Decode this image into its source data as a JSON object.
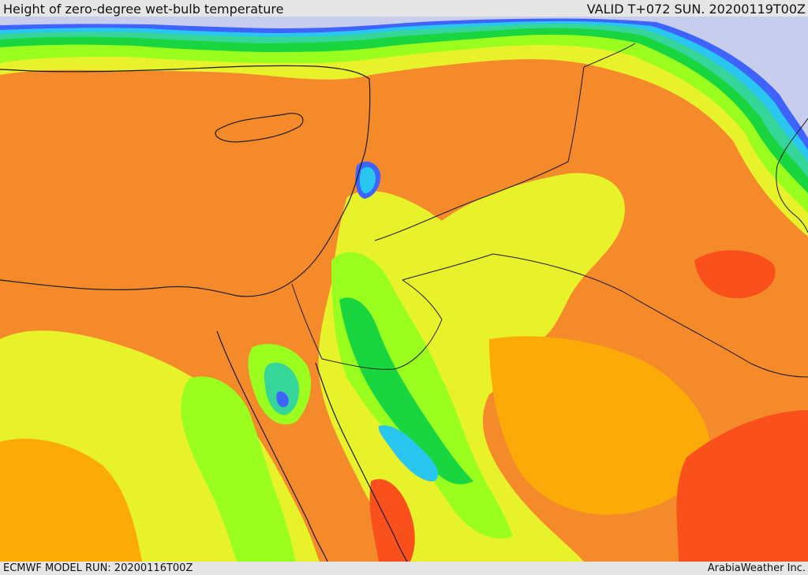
{
  "header": {
    "title": "Height of zero-degree wet-bulb temperature",
    "valid": "VALID T+072 SUN. 20200119T00Z"
  },
  "footer": {
    "model_run": "ECMWF MODEL RUN: 20200116T00Z",
    "credit": "ArabiaWeather Inc."
  },
  "colors": {
    "lavender": "#c8cdee",
    "blue": "#3f63ff",
    "cyan": "#29c7ef",
    "teal": "#36d69a",
    "green": "#19d640",
    "lime": "#9afe1e",
    "yellow": "#e8f22a",
    "amber": "#fbaa08",
    "orange": "#f58a2a",
    "red": "#f9501c",
    "border": "#1a1a1a"
  }
}
